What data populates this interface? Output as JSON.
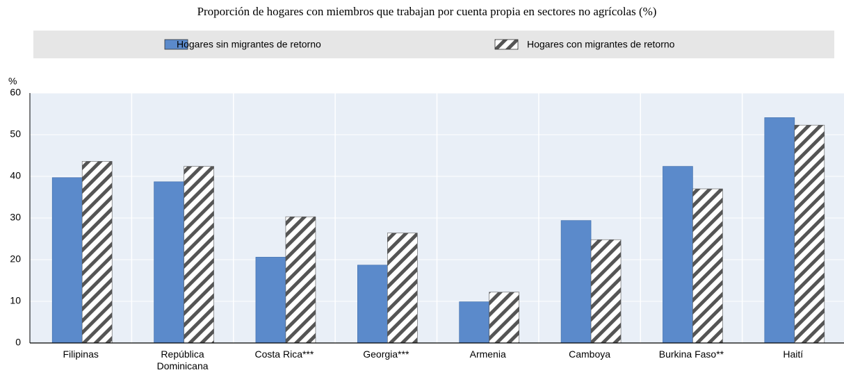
{
  "chart_data": {
    "type": "bar",
    "subtitle": "Proporción de hogares con miembros que trabajan por cuenta propia en sectores no agrícolas (%)",
    "y_label": "%",
    "categories": [
      "Filipinas",
      "República Dominicana",
      "Costa Rica***",
      "Georgia***",
      "Armenia",
      "Camboya",
      "Burkina Faso**",
      "Haití"
    ],
    "series": [
      {
        "name": "Hogares sin migrantes de retorno",
        "color": "#5b8acb",
        "values": [
          39.7,
          38.7,
          20.6,
          18.7,
          9.9,
          29.4,
          42.4,
          54.1
        ]
      },
      {
        "name": "Hogares con migrantes de retorno",
        "color": "hatch",
        "values": [
          43.6,
          42.4,
          30.3,
          26.4,
          12.2,
          24.8,
          37.0,
          52.3
        ]
      }
    ],
    "ylim": [
      0,
      60
    ],
    "yticks": [
      0,
      10,
      20,
      30,
      40,
      50,
      60
    ],
    "grid": true
  }
}
